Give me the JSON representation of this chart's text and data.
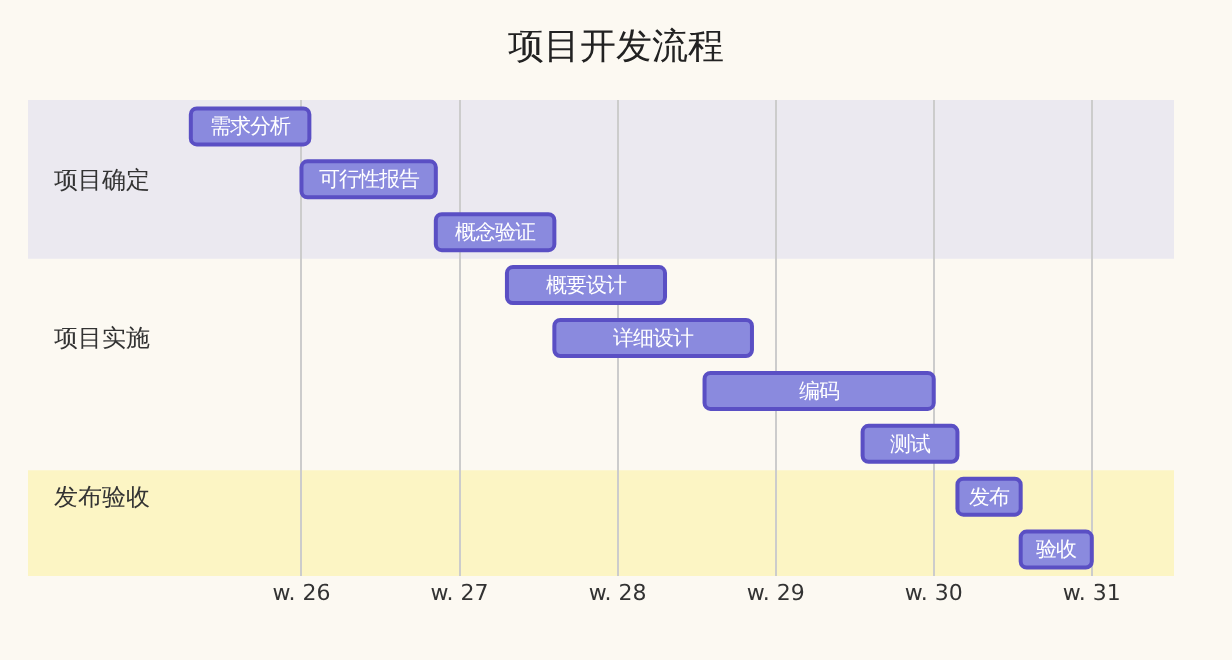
{
  "chart_data": {
    "type": "bar",
    "title": "项目开发流程",
    "orientation": "horizontal",
    "categories": [
      null,
      "项目确定",
      null,
      null,
      "项目实施",
      null,
      null,
      "发布验收",
      null
    ],
    "base": [
      25.3,
      26.0,
      26.85,
      27.3,
      27.6,
      28.55,
      29.55,
      30.15,
      30.55
    ],
    "values": [
      0.75,
      0.85,
      0.75,
      1.0,
      1.25,
      1.45,
      0.6,
      0.4,
      0.45
    ],
    "value_labels": [
      "需求分析",
      "可行性报告",
      "概念验证",
      "概要设计",
      "详细设计",
      "编码",
      "测试",
      "发布",
      "验收"
    ],
    "color": "#8a8ade",
    "xlim": [
      24.27,
      31.52
    ],
    "xticks": [
      {
        "value": 26,
        "label": "w. 26"
      },
      {
        "value": 27,
        "label": "w. 27"
      },
      {
        "value": 28,
        "label": "w. 28"
      },
      {
        "value": 29,
        "label": "w. 29"
      },
      {
        "value": 30,
        "label": "w. 30"
      },
      {
        "value": 31,
        "label": "w. 31"
      }
    ],
    "grid": "x",
    "legend": false
  }
}
